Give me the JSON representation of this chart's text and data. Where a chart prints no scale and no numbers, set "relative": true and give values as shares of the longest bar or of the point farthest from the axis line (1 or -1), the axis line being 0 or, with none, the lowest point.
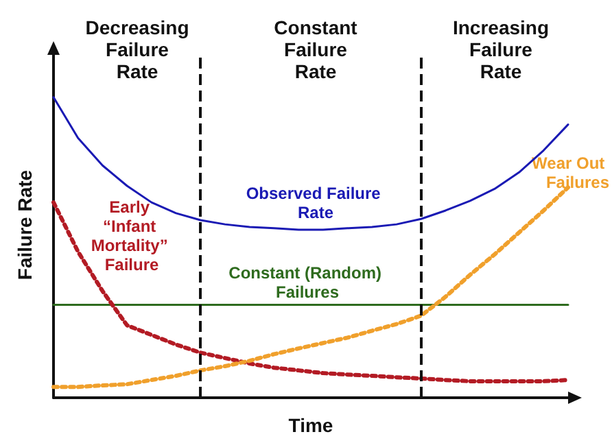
{
  "chart_data": {
    "type": "line",
    "relative": true,
    "xlabel": "Time",
    "ylabel": "Failure Rate",
    "categories": [
      null,
      null,
      null,
      null,
      null,
      null,
      null,
      null,
      null,
      null,
      null,
      null,
      null,
      null,
      null,
      null,
      null,
      null,
      null,
      null,
      null,
      null
    ],
    "series": [
      {
        "name": "Observed Failure Rate",
        "color": "#1a1ab4",
        "line_style": "solid",
        "values": [
          1.0,
          0.864,
          0.773,
          0.705,
          0.65,
          0.614,
          0.591,
          0.577,
          0.568,
          0.564,
          0.559,
          0.559,
          0.564,
          0.568,
          0.577,
          0.595,
          0.623,
          0.655,
          0.695,
          0.75,
          0.823,
          0.909
        ]
      },
      {
        "name": "Constant (Random) Failures",
        "color": "#2e6b1e",
        "line_style": "solid",
        "values": [
          0.309,
          0.309,
          0.309,
          0.309,
          0.309,
          0.309,
          0.309,
          0.309,
          0.309,
          0.309,
          0.309,
          0.309,
          0.309,
          0.309,
          0.309,
          0.309,
          0.309,
          0.309,
          0.309,
          0.309,
          0.309,
          0.309
        ]
      },
      {
        "name": "Early “Infant Mortality” Failure",
        "color": "#b31b24",
        "line_style": "dotted",
        "values": [
          0.65,
          0.486,
          0.355,
          0.241,
          0.209,
          0.177,
          0.15,
          0.132,
          0.114,
          0.1,
          0.091,
          0.082,
          0.077,
          0.073,
          0.068,
          0.064,
          0.059,
          0.055,
          0.055,
          0.055,
          0.055,
          0.059
        ]
      },
      {
        "name": "Wear Out Failures",
        "color": "#f0a02c",
        "line_style": "dotted",
        "values": [
          0.036,
          0.036,
          0.041,
          0.045,
          0.059,
          0.073,
          0.091,
          0.105,
          0.123,
          0.145,
          0.164,
          0.182,
          0.2,
          0.223,
          0.245,
          0.273,
          0.336,
          0.409,
          0.477,
          0.55,
          0.623,
          0.7
        ]
      }
    ],
    "annotations": [
      "Decreasing Failure Rate",
      "Constant Failure Rate",
      "Increasing Failure Rate"
    ],
    "legend": false,
    "grid": false,
    "marker": "none"
  }
}
